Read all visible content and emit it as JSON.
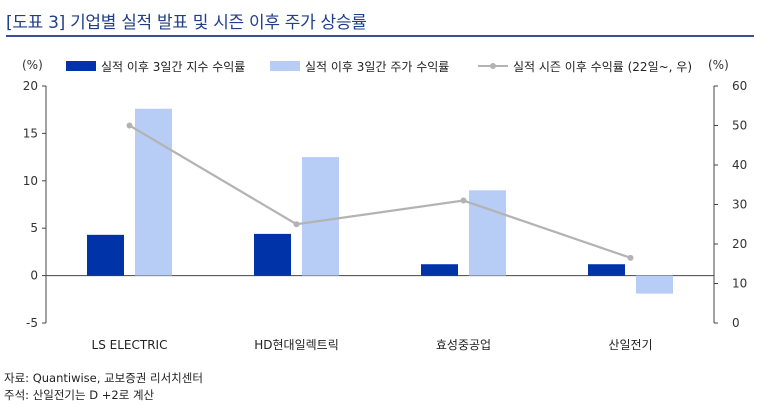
{
  "header": {
    "title": "[도표 3] 기업별 실적 발표 및 시즌 이후 주가 상승률"
  },
  "chart_data": {
    "type": "bar",
    "categories": [
      "LS ELECTRIC",
      "HD현대일렉트릭",
      "효성중공업",
      "산일전기"
    ],
    "series": [
      {
        "name": "실적 이후 3일간 지수 수익률",
        "type": "bar",
        "axis": "left",
        "color": "#0033a8",
        "values": [
          4.3,
          4.4,
          1.2,
          1.2
        ]
      },
      {
        "name": "실적 이후 3일간 주가 수익률",
        "type": "bar",
        "axis": "left",
        "color": "#b8cdf5",
        "values": [
          17.6,
          12.5,
          9.0,
          -1.9
        ]
      },
      {
        "name": "실적 시즌 이후 수익률 (22일~, 우)",
        "type": "line",
        "axis": "right",
        "color": "#b3b3b3",
        "values": [
          50.0,
          25.0,
          31.0,
          16.5
        ]
      }
    ],
    "y_left": {
      "label": "(%)",
      "min": -5,
      "max": 20,
      "ticks": [
        20,
        15,
        10,
        5,
        0,
        -5
      ]
    },
    "y_right": {
      "label": "(%)",
      "min": 0,
      "max": 60,
      "ticks": [
        60,
        50,
        40,
        30,
        20,
        10,
        0
      ]
    },
    "legend_position": "top",
    "grid": false
  },
  "footnotes": {
    "source": "자료: Quantiwise, 교보증권 리서치센터",
    "note": "주석: 산일전기는 D +2로 계산"
  }
}
